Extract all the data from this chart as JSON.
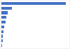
{
  "values": [
    2000,
    330,
    200,
    160,
    120,
    80,
    60,
    50,
    40,
    20
  ],
  "bar_color": "#4472c4",
  "background_color": "#f2f2f2",
  "plot_background": "#ffffff",
  "bar_height": 0.6,
  "xlim": [
    0,
    2100
  ],
  "n_bars": 10
}
